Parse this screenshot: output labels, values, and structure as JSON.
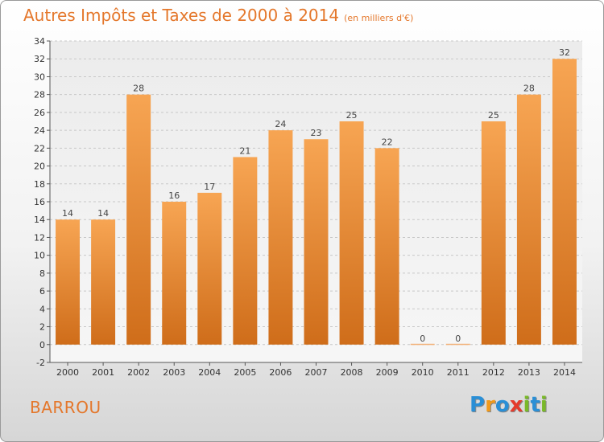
{
  "header": {
    "title": "Autres Impôts et Taxes de 2000 à 2014",
    "unit": "(en milliers d'€)"
  },
  "footer": {
    "commune": "BARROU",
    "logo_letters": [
      {
        "char": "P",
        "color": "#2a8fd6"
      },
      {
        "char": "r",
        "color": "#f29a1a"
      },
      {
        "char": "o",
        "color": "#2a8fd6"
      },
      {
        "char": "x",
        "color": "#e53b2c"
      },
      {
        "char": "i",
        "color": "#7ab929"
      },
      {
        "char": "t",
        "color": "#2a8fd6"
      },
      {
        "char": "i",
        "color": "#7ab929"
      }
    ]
  },
  "chart_data": {
    "type": "bar",
    "categories": [
      "2000",
      "2001",
      "2002",
      "2003",
      "2004",
      "2005",
      "2006",
      "2007",
      "2008",
      "2009",
      "2010",
      "2011",
      "2012",
      "2013",
      "2014"
    ],
    "values": [
      14,
      14,
      28,
      16,
      17,
      21,
      24,
      23,
      25,
      22,
      0,
      0,
      25,
      28,
      32
    ],
    "ylim": [
      -2,
      34
    ],
    "yticks": [
      -2,
      0,
      2,
      4,
      6,
      8,
      10,
      12,
      14,
      16,
      18,
      20,
      22,
      24,
      26,
      28,
      30,
      32,
      34
    ],
    "grid": true,
    "bar_color_top": "#f7a553",
    "bar_color_bottom": "#cf6d1a",
    "title_color": "#e4772b"
  }
}
